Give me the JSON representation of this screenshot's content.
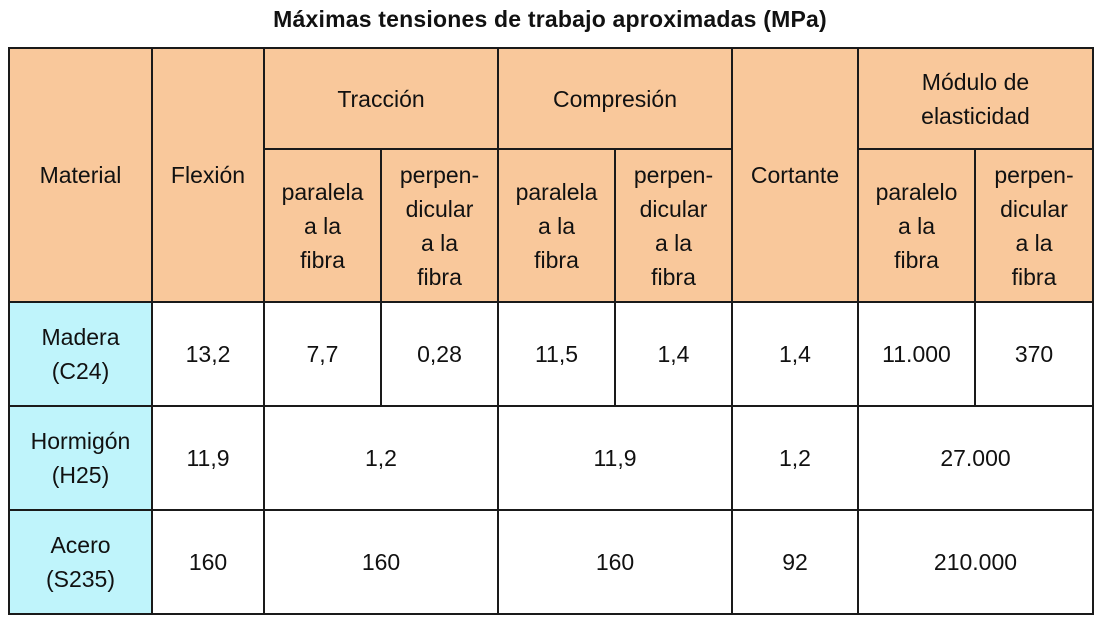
{
  "title": "Máximas tensiones de trabajo aproximadas (MPa)",
  "headers": {
    "material": "Material",
    "flexion": "Flexión",
    "traccion": "Tracción",
    "compresion": "Compresión",
    "cortante": "Cortante",
    "modulo": "Módulo de\nelasticidad",
    "paralela": "paralela\na la\nfibra",
    "perpendicular": "perpen-\ndicular\na la\nfibra",
    "paralelo": "paralelo\na la\nfibra"
  },
  "rows": [
    {
      "material": "Madera\n(C24)",
      "flexion": "13,2",
      "traccion_paralela": "7,7",
      "traccion_perpendicular": "0,28",
      "compresion_paralela": "11,5",
      "compresion_perpendicular": "1,4",
      "cortante": "1,4",
      "modulo_paralelo": "11.000",
      "modulo_perpendicular": "370"
    },
    {
      "material": "Hormigón\n(H25)",
      "flexion": "11,9",
      "traccion": "1,2",
      "compresion": "11,9",
      "cortante": "1,2",
      "modulo": "27.000"
    },
    {
      "material": "Acero\n(S235)",
      "flexion": "160",
      "traccion": "160",
      "compresion": "160",
      "cortante": "92",
      "modulo": "210.000"
    }
  ]
}
